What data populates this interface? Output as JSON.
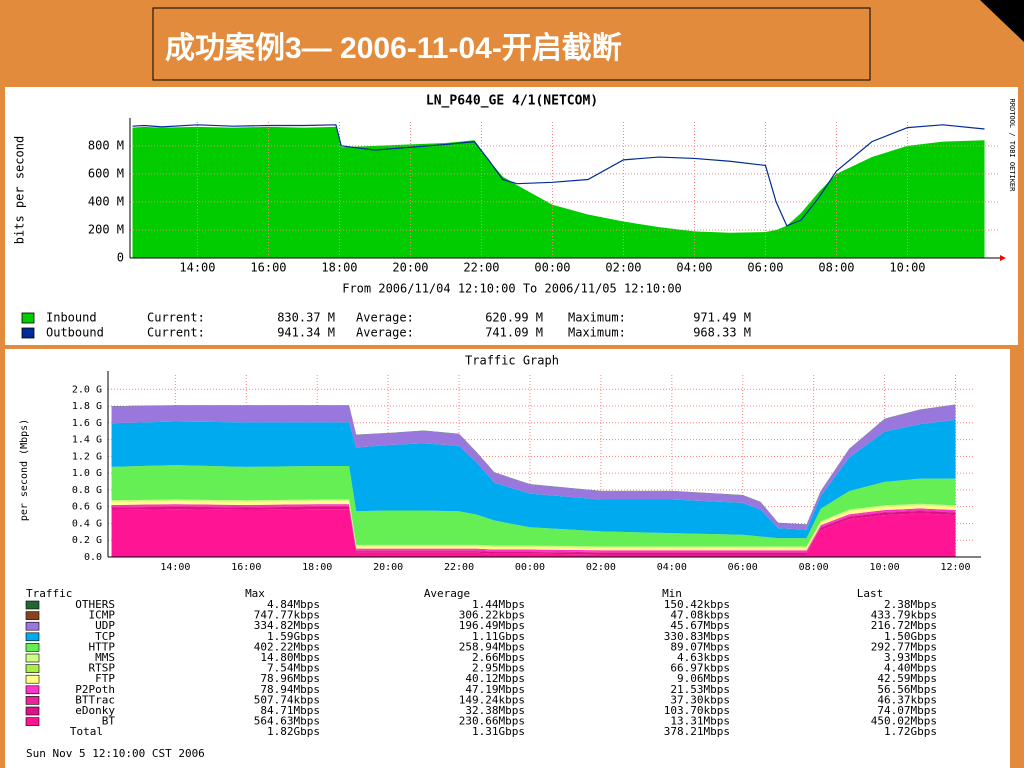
{
  "title": "成功案例3— 2006-11-04-开启截断",
  "chart_data": [
    {
      "type": "area",
      "title": "LN_P640_GE 4/1(NETCOM)",
      "subtitle": "From 2006/11/04 12:10:00 To 2006/11/05 12:10:00",
      "y_label": "bits per second",
      "side_label": "RRDTOOL / TOBI OETIKER",
      "legend_labels": [
        "Current:",
        "Average:",
        "Maximum:"
      ],
      "x": [
        12.17,
        12.5,
        13,
        14,
        15,
        16,
        17,
        17.9,
        18.05,
        19,
        20,
        21,
        21.8,
        22.2,
        22.6,
        23,
        24,
        25,
        26,
        27,
        28,
        29,
        30,
        30.3,
        30.6,
        31,
        31.5,
        32,
        33,
        34,
        35,
        36.17
      ],
      "xlim": [
        12.1,
        36.55
      ],
      "xticks": [
        {
          "value": 14,
          "label": "14:00"
        },
        {
          "value": 16,
          "label": "16:00"
        },
        {
          "value": 18,
          "label": "18:00"
        },
        {
          "value": 20,
          "label": "20:00"
        },
        {
          "value": 22,
          "label": "22:00"
        },
        {
          "value": 24,
          "label": "00:00"
        },
        {
          "value": 26,
          "label": "02:00"
        },
        {
          "value": 28,
          "label": "04:00"
        },
        {
          "value": 30,
          "label": "06:00"
        },
        {
          "value": 32,
          "label": "08:00"
        },
        {
          "value": 34,
          "label": "10:00"
        }
      ],
      "ylim": [
        0,
        970
      ],
      "yticks": [
        0,
        {
          "value": 200,
          "label": "200 M"
        },
        {
          "value": 400,
          "label": "400 M"
        },
        {
          "value": 600,
          "label": "600 M"
        },
        {
          "value": 800,
          "label": "800 M"
        }
      ],
      "grid": true,
      "series": [
        {
          "name": "Inbound",
          "color": "#00cc00",
          "style": "area",
          "stats": [
            "830.37 M",
            "620.99 M",
            "971.49 M"
          ],
          "values": [
            930,
            935,
            930,
            935,
            930,
            935,
            930,
            935,
            790,
            800,
            810,
            820,
            840,
            700,
            580,
            520,
            380,
            310,
            260,
            220,
            190,
            180,
            185,
            200,
            230,
            320,
            470,
            600,
            720,
            800,
            830,
            840
          ]
        },
        {
          "name": "Outbound",
          "color": "#002a97",
          "style": "line",
          "stats": [
            "941.34 M",
            "741.09 M",
            "968.33 M"
          ],
          "values": [
            940,
            945,
            935,
            950,
            940,
            945,
            945,
            950,
            800,
            770,
            790,
            810,
            830,
            700,
            560,
            530,
            540,
            560,
            700,
            720,
            710,
            690,
            660,
            400,
            230,
            270,
            430,
            620,
            830,
            930,
            950,
            920
          ]
        }
      ]
    },
    {
      "type": "stacked_area",
      "title": "Traffic Graph",
      "y_label": "per second (Mbps)",
      "stats_header": [
        "Traffic",
        "Max",
        "Average",
        "Min",
        "Last"
      ],
      "footer": "Sun Nov  5 12:10:00 CST 2006",
      "x": [
        12.2,
        14,
        16,
        18,
        18.9,
        19.1,
        20,
        21,
        22,
        22.5,
        23,
        24,
        26,
        28,
        30,
        30.5,
        31,
        31.8,
        32.2,
        33,
        34,
        35,
        36
      ],
      "xlim": [
        12.1,
        36.55
      ],
      "xticks": [
        {
          "value": 14,
          "label": "14:00"
        },
        {
          "value": 16,
          "label": "16:00"
        },
        {
          "value": 18,
          "label": "18:00"
        },
        {
          "value": 20,
          "label": "20:00"
        },
        {
          "value": 22,
          "label": "22:00"
        },
        {
          "value": 24,
          "label": "00:00"
        },
        {
          "value": 26,
          "label": "02:00"
        },
        {
          "value": 28,
          "label": "04:00"
        },
        {
          "value": 30,
          "label": "06:00"
        },
        {
          "value": 32,
          "label": "08:00"
        },
        {
          "value": 34,
          "label": "10:00"
        },
        {
          "value": 36,
          "label": "12:00"
        }
      ],
      "ylim": [
        0,
        2.17
      ],
      "yticks": [
        {
          "value": 0,
          "label": "0.0"
        },
        {
          "value": 0.2,
          "label": "0.2 G"
        },
        {
          "value": 0.4,
          "label": "0.4 G"
        },
        {
          "value": 0.6,
          "label": "0.6 G"
        },
        {
          "value": 0.8,
          "label": "0.8 G"
        },
        {
          "value": 1.0,
          "label": "1.0 G"
        },
        {
          "value": 1.2,
          "label": "1.2 G"
        },
        {
          "value": 1.4,
          "label": "1.4 G"
        },
        {
          "value": 1.6,
          "label": "1.6 G"
        },
        {
          "value": 1.8,
          "label": "1.8 G"
        },
        {
          "value": 2.0,
          "label": "2.0 G"
        }
      ],
      "grid": true,
      "series": [
        {
          "name": "OTHERS",
          "color": "#226633",
          "stats": [
            "4.84Mbps",
            "1.44Mbps",
            "150.42kbps",
            "2.38Mbps"
          ],
          "values": [
            0.003,
            0.003,
            0.003,
            0.003,
            0.003,
            0.003,
            0.003,
            0.003,
            0.003,
            0.003,
            0.003,
            0.003,
            0.003,
            0.003,
            0.003,
            0.003,
            0.003,
            0.003,
            0.003,
            0.003,
            0.003,
            0.003,
            0.003
          ]
        },
        {
          "name": "ICMP",
          "color": "#884422",
          "stats": [
            "747.77kbps",
            "306.22kbps",
            "47.08kbps",
            "433.79kbps"
          ],
          "values": [
            0.001,
            0.001,
            0.001,
            0.001,
            0.001,
            0.001,
            0.001,
            0.001,
            0.001,
            0.001,
            0.001,
            0.001,
            0.001,
            0.001,
            0.001,
            0.001,
            0.001,
            0.001,
            0.001,
            0.001,
            0.001,
            0.001,
            0.001
          ]
        },
        {
          "name": "UDP",
          "color": "#9977dd",
          "stats": [
            "334.82Mbps",
            "196.49Mbps",
            "45.67Mbps",
            "216.72Mbps"
          ],
          "values": [
            0.2,
            0.19,
            0.2,
            0.2,
            0.2,
            0.15,
            0.14,
            0.15,
            0.14,
            0.12,
            0.12,
            0.11,
            0.1,
            0.1,
            0.09,
            0.09,
            0.06,
            0.06,
            0.06,
            0.1,
            0.15,
            0.17,
            0.18
          ]
        },
        {
          "name": "TCP",
          "color": "#00aaee",
          "stats": [
            "1.59Gbps",
            "1.11Gbps",
            "330.83Mbps",
            "1.50Gbps"
          ],
          "values": [
            0.52,
            0.52,
            0.53,
            0.52,
            0.52,
            0.76,
            0.78,
            0.8,
            0.78,
            0.62,
            0.45,
            0.4,
            0.38,
            0.4,
            0.38,
            0.32,
            0.12,
            0.1,
            0.15,
            0.4,
            0.6,
            0.65,
            0.7
          ]
        },
        {
          "name": "HTTP",
          "color": "#66ee55",
          "stats": [
            "402.22Mbps",
            "258.94Mbps",
            "89.07Mbps",
            "292.77Mbps"
          ],
          "values": [
            0.4,
            0.41,
            0.4,
            0.4,
            0.4,
            0.4,
            0.41,
            0.41,
            0.4,
            0.36,
            0.3,
            0.22,
            0.18,
            0.16,
            0.14,
            0.12,
            0.1,
            0.1,
            0.15,
            0.22,
            0.28,
            0.3,
            0.32
          ]
        },
        {
          "name": "MMS",
          "color": "#ccff88",
          "stats": [
            "14.80Mbps",
            "2.66Mbps",
            "4.63kbps",
            "3.93Mbps"
          ],
          "values": [
            0.01,
            0.01,
            0.01,
            0.01,
            0.01,
            0.01,
            0.01,
            0.01,
            0.01,
            0.01,
            0.01,
            0.01,
            0.01,
            0.01,
            0.01,
            0.01,
            0.01,
            0.01,
            0.01,
            0.01,
            0.01,
            0.01,
            0.01
          ]
        },
        {
          "name": "RTSP",
          "color": "#aaee44",
          "stats": [
            "7.54Mbps",
            "2.95Mbps",
            "66.97kbps",
            "4.40Mbps"
          ],
          "values": [
            0.005,
            0.005,
            0.005,
            0.005,
            0.005,
            0.005,
            0.005,
            0.005,
            0.005,
            0.005,
            0.005,
            0.005,
            0.005,
            0.005,
            0.005,
            0.005,
            0.005,
            0.005,
            0.005,
            0.005,
            0.005,
            0.005,
            0.005
          ]
        },
        {
          "name": "FTP",
          "color": "#ffff88",
          "stats": [
            "78.96Mbps",
            "40.12Mbps",
            "9.06Mbps",
            "42.59Mbps"
          ],
          "values": [
            0.04,
            0.04,
            0.04,
            0.04,
            0.04,
            0.03,
            0.03,
            0.03,
            0.03,
            0.03,
            0.03,
            0.03,
            0.03,
            0.03,
            0.03,
            0.03,
            0.03,
            0.03,
            0.03,
            0.04,
            0.04,
            0.04,
            0.04
          ]
        },
        {
          "name": "P2Poth",
          "color": "#ff33cc",
          "stats": [
            "78.94Mbps",
            "47.19Mbps",
            "21.53Mbps",
            "56.56Mbps"
          ],
          "values": [
            0.02,
            0.02,
            0.02,
            0.02,
            0.02,
            0.02,
            0.02,
            0.02,
            0.02,
            0.02,
            0.02,
            0.02,
            0.02,
            0.02,
            0.02,
            0.02,
            0.02,
            0.02,
            0.02,
            0.02,
            0.02,
            0.02,
            0.02
          ]
        },
        {
          "name": "BTTrac",
          "color": "#ee2299",
          "stats": [
            "507.74kbps",
            "149.24kbps",
            "37.30kbps",
            "46.37kbps"
          ],
          "values": [
            0.01,
            0.01,
            0.01,
            0.01,
            0.01,
            0.01,
            0.01,
            0.01,
            0.01,
            0.01,
            0.01,
            0.01,
            0.01,
            0.01,
            0.01,
            0.01,
            0.01,
            0.01,
            0.01,
            0.01,
            0.01,
            0.01,
            0.01
          ]
        },
        {
          "name": "eDonky",
          "color": "#dd1188",
          "stats": [
            "84.71Mbps",
            "32.38Mbps",
            "103.70kbps",
            "74.07Mbps"
          ],
          "values": [
            0.03,
            0.03,
            0.03,
            0.03,
            0.03,
            0.02,
            0.02,
            0.02,
            0.02,
            0.02,
            0.02,
            0.02,
            0.02,
            0.02,
            0.02,
            0.02,
            0.02,
            0.02,
            0.03,
            0.03,
            0.03,
            0.03,
            0.03
          ]
        },
        {
          "name": "BT",
          "color": "#ff1493",
          "stats": [
            "564.63Mbps",
            "230.66Mbps",
            "13.31Mbps",
            "450.02Mbps"
          ],
          "values": [
            0.56,
            0.57,
            0.56,
            0.57,
            0.57,
            0.05,
            0.05,
            0.05,
            0.05,
            0.05,
            0.04,
            0.04,
            0.03,
            0.03,
            0.03,
            0.03,
            0.03,
            0.03,
            0.32,
            0.45,
            0.5,
            0.52,
            0.5
          ]
        }
      ],
      "total": {
        "name": "Total",
        "stats": [
          "1.82Gbps",
          "1.31Gbps",
          "378.21Mbps",
          "1.72Gbps"
        ]
      }
    }
  ]
}
